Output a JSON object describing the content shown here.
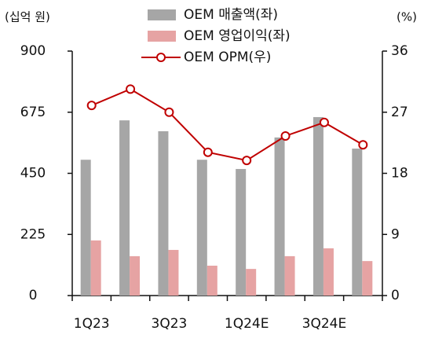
{
  "chart_data": {
    "type": "bar_line",
    "y_unit": "(십억 원)",
    "y2_unit": "(%)",
    "categories": [
      "1Q23",
      null,
      "3Q23",
      null,
      "1Q24E",
      null,
      "3Q24E",
      null
    ],
    "series": [
      {
        "name": "OEM 매출액(좌)",
        "type": "bar",
        "color": "#a6a6a6",
        "values": [
          500,
          645,
          605,
          500,
          466,
          582,
          657,
          541
        ]
      },
      {
        "name": "OEM 영업이익(좌)",
        "type": "bar",
        "color": "#e6a3a3",
        "values": [
          203,
          145,
          168,
          110,
          98,
          145,
          174,
          127
        ]
      },
      {
        "name": "OEM OPM(우)",
        "type": "line",
        "axis": "y2",
        "color": "#c00000",
        "values": [
          28.0,
          30.4,
          27.0,
          21.1,
          19.9,
          23.5,
          25.5,
          22.2
        ]
      }
    ],
    "ylim": [
      0,
      900
    ],
    "yticks": [
      0,
      225,
      450,
      675,
      900
    ],
    "y2lim": [
      0,
      36
    ],
    "y2ticks": [
      0,
      9,
      18,
      27,
      36
    ]
  }
}
